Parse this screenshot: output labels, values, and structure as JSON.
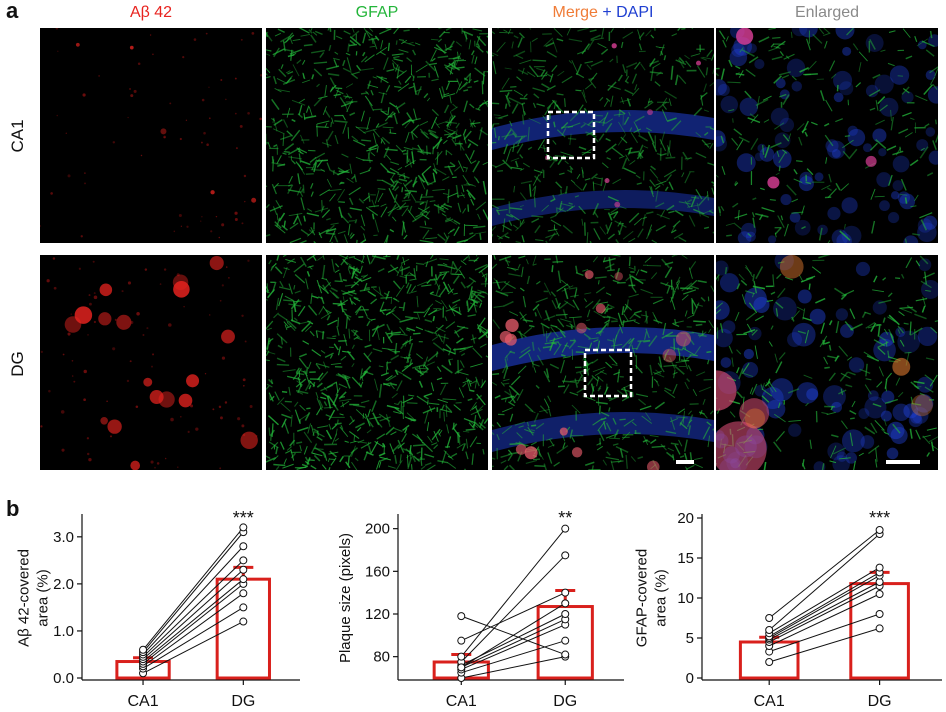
{
  "figure": {
    "panel_a_label": "a",
    "panel_b_label": "b",
    "column_titles": {
      "abeta": "Aβ 42",
      "gfap": "GFAP",
      "merge": "Merge",
      "plus": " + ",
      "dapi": "DAPI",
      "enlarged": "Enlarged"
    },
    "row_labels": [
      "CA1",
      "DG"
    ],
    "colors": {
      "abeta": "#e8231f",
      "gfap": "#23b53a",
      "merge": "#f07c37",
      "dapi": "#1f3fd1",
      "enlarged": "#8a8a8a",
      "bar": "#d9201c"
    }
  },
  "chart_data": [
    {
      "type": "bar",
      "categories": [
        "CA1",
        "DG"
      ],
      "values": [
        0.35,
        2.1
      ],
      "errors": [
        0.08,
        0.25
      ],
      "ylabel": "Aβ 42-covered area (%)",
      "ylabel_lines": [
        "Aβ 42-covered",
        "area (%)"
      ],
      "ylim": [
        0,
        3.4
      ],
      "yticks": [
        0.0,
        1.0,
        2.0,
        3.0
      ],
      "ytick_labels": [
        "0.0",
        "1.0",
        "2.0",
        "3.0"
      ],
      "significance": "***",
      "paired_points": [
        [
          0.1,
          1.2
        ],
        [
          0.2,
          1.5
        ],
        [
          0.25,
          1.8
        ],
        [
          0.3,
          2.0
        ],
        [
          0.35,
          2.1
        ],
        [
          0.4,
          2.3
        ],
        [
          0.45,
          2.5
        ],
        [
          0.5,
          2.8
        ],
        [
          0.55,
          3.1
        ],
        [
          0.6,
          3.2
        ]
      ]
    },
    {
      "type": "bar",
      "categories": [
        "CA1",
        "DG"
      ],
      "values": [
        75,
        127
      ],
      "errors": [
        7,
        15
      ],
      "ylabel": "Plaque size (pixels)",
      "ylabel_lines": [
        "Plaque size (pixels)"
      ],
      "ylim": [
        60,
        210
      ],
      "yticks": [
        80,
        120,
        160,
        200
      ],
      "ytick_labels": [
        "80",
        "120",
        "160",
        "200"
      ],
      "significance": "**",
      "paired_points": [
        [
          60,
          80
        ],
        [
          65,
          95
        ],
        [
          68,
          110
        ],
        [
          70,
          115
        ],
        [
          72,
          120
        ],
        [
          75,
          175
        ],
        [
          80,
          200
        ],
        [
          95,
          140
        ],
        [
          118,
          82
        ],
        [
          70,
          130
        ]
      ]
    },
    {
      "type": "bar",
      "categories": [
        "CA1",
        "DG"
      ],
      "values": [
        4.5,
        11.8
      ],
      "errors": [
        0.6,
        1.4
      ],
      "ylabel": "GFAP-covered area (%)",
      "ylabel_lines": [
        "GFAP-covered",
        "area (%)"
      ],
      "ylim": [
        0,
        20
      ],
      "yticks": [
        0,
        5,
        10,
        15,
        20
      ],
      "ytick_labels": [
        "0",
        "5",
        "10",
        "15",
        "20"
      ],
      "significance": "***",
      "paired_points": [
        [
          2.0,
          6.2
        ],
        [
          3.3,
          8.0
        ],
        [
          4.0,
          10.5
        ],
        [
          4.5,
          11.5
        ],
        [
          4.8,
          12.0
        ],
        [
          5.0,
          12.8
        ],
        [
          5.2,
          13.2
        ],
        [
          5.6,
          13.8
        ],
        [
          6.0,
          18.0
        ],
        [
          7.5,
          18.5
        ]
      ]
    }
  ]
}
